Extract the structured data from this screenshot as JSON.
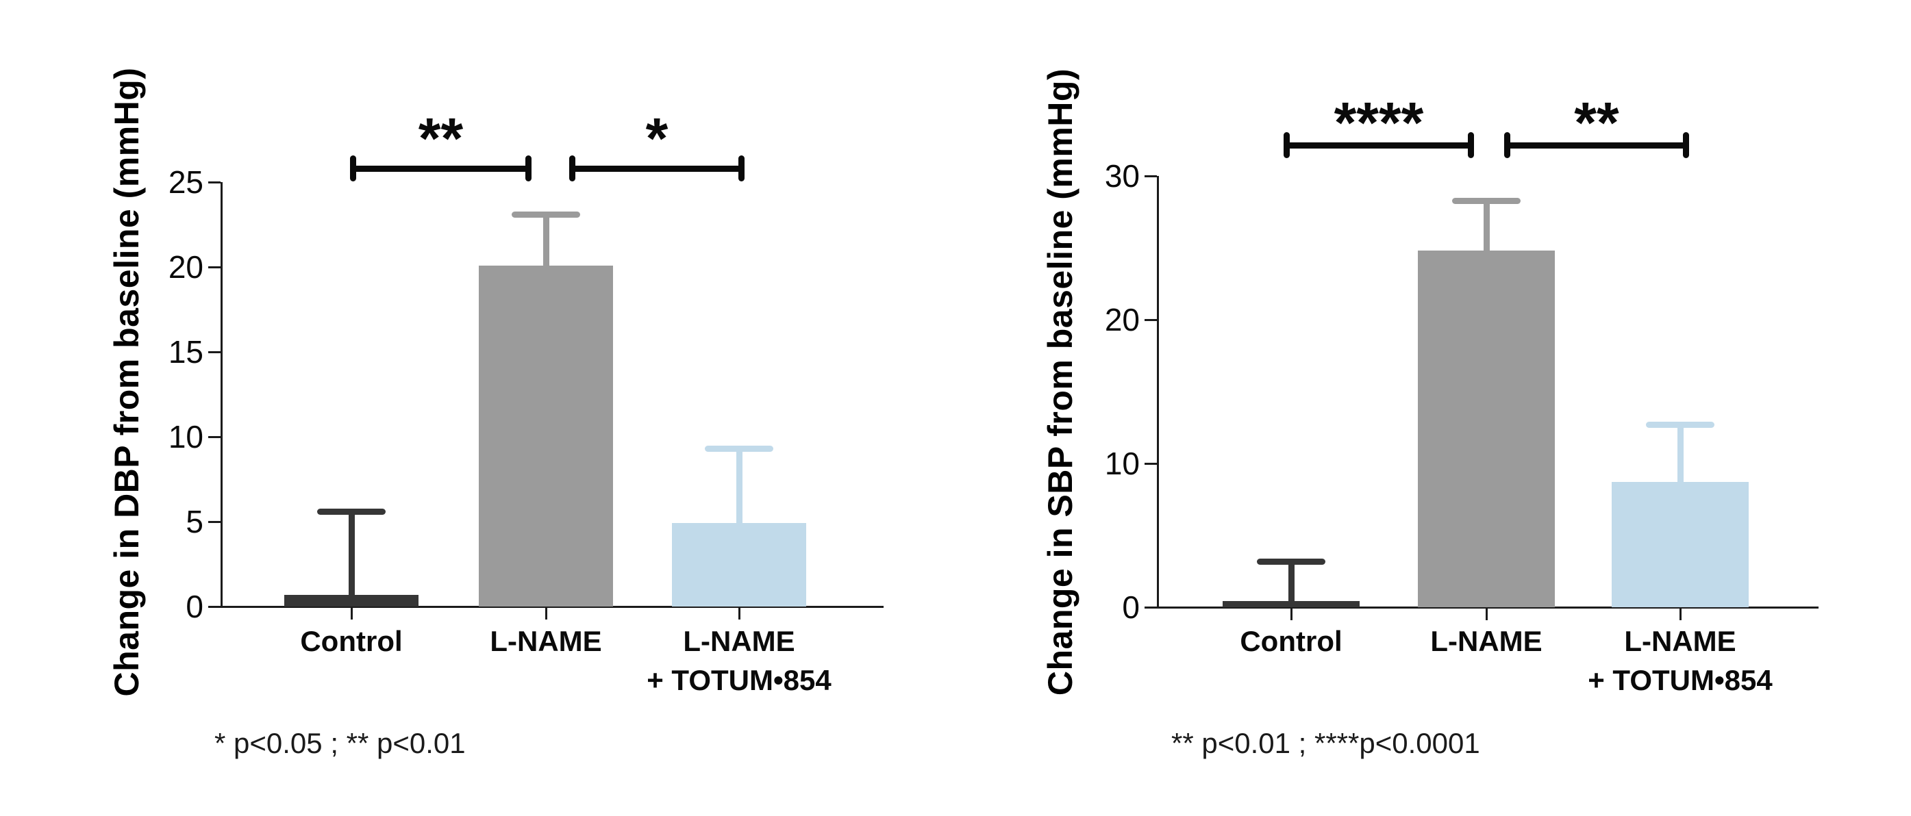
{
  "chart_data": [
    {
      "type": "bar",
      "ylabel": "Change in DBP from baseline (mmHg)",
      "xlabel": "",
      "categories": [
        "Control",
        "L-NAME",
        "L-NAME\n+ TOTUM•854"
      ],
      "values": [
        0.7,
        20.1,
        4.9
      ],
      "errors_upper": [
        4.9,
        3.0,
        4.4
      ],
      "ylim": [
        0,
        25
      ],
      "yticks": [
        0,
        5,
        10,
        15,
        20,
        25
      ],
      "bar_colors": [
        "#363636",
        "#9b9b9b",
        "#c1daea"
      ],
      "significance": [
        {
          "label": "**",
          "between": [
            0,
            1
          ]
        },
        {
          "label": "*",
          "between": [
            1,
            2
          ]
        }
      ],
      "footnote": "* p<0.05 ; ** p<0.01",
      "grid": false,
      "legend": false
    },
    {
      "type": "bar",
      "ylabel": "Change in SBP from baseline (mmHg)",
      "xlabel": "",
      "categories": [
        "Control",
        "L-NAME",
        "L-NAME\n+ TOTUM•854"
      ],
      "values": [
        0.45,
        24.8,
        8.7
      ],
      "errors_upper": [
        2.75,
        3.5,
        4.0
      ],
      "ylim": [
        0,
        30
      ],
      "yticks": [
        0,
        10,
        20,
        30
      ],
      "bar_colors": [
        "#363636",
        "#9b9b9b",
        "#c1daea"
      ],
      "significance": [
        {
          "label": "****",
          "between": [
            0,
            1
          ]
        },
        {
          "label": "**",
          "between": [
            1,
            2
          ]
        }
      ],
      "footnote": "** p<0.01 ; ****p<0.0001",
      "grid": false,
      "legend": false
    }
  ],
  "colors": {
    "axis": "#1b1b1b",
    "control_bar": "#363636",
    "lname_bar": "#9b9b9b",
    "lname_totum_bar": "#c1daea"
  }
}
